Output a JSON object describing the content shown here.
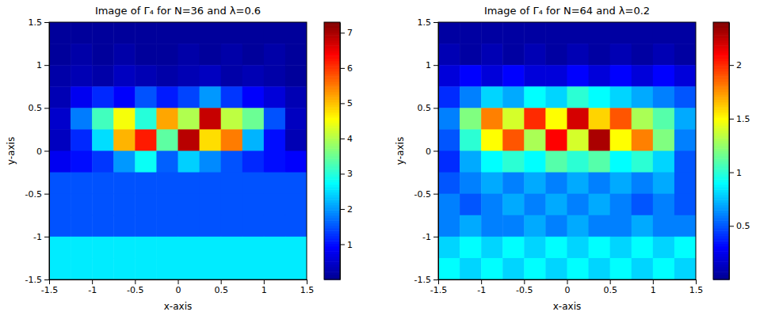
{
  "chart_data": [
    {
      "type": "heatmap",
      "title": "Image of Γ₄ for N=36 and λ=0.6",
      "x_label": "x-axis",
      "y_label": "y-axis",
      "xlim": [
        -1.5,
        1.5
      ],
      "ylim": [
        -1.5,
        1.5
      ],
      "xticks": [
        -1.5,
        -1,
        -0.5,
        0,
        0.5,
        1,
        1.5
      ],
      "yticks": [
        -1.5,
        -1,
        -0.5,
        0,
        0.5,
        1,
        1.5
      ],
      "x": [
        -1.375,
        -1.125,
        -0.875,
        -0.625,
        -0.375,
        -0.125,
        0.125,
        0.375,
        0.625,
        0.875,
        1.125,
        1.375
      ],
      "y": [
        1.375,
        1.125,
        0.875,
        0.625,
        0.375,
        0.125,
        -0.125,
        -0.375,
        -0.625,
        -0.875,
        -1.125,
        -1.375
      ],
      "values": [
        [
          0.1,
          0.1,
          0.1,
          0.1,
          0.1,
          0.1,
          0.1,
          0.1,
          0.1,
          0.1,
          0.1,
          0.1
        ],
        [
          0.1,
          0.2,
          0.1,
          0.2,
          0.1,
          0.1,
          0.2,
          0.1,
          0.2,
          0.1,
          0.2,
          0.1
        ],
        [
          0.2,
          0.3,
          0.2,
          0.4,
          0.3,
          0.2,
          0.3,
          0.4,
          0.2,
          0.3,
          0.2,
          0.1
        ],
        [
          0.3,
          0.8,
          1.2,
          0.9,
          1.5,
          1.1,
          1.4,
          2.0,
          1.3,
          0.9,
          0.6,
          0.3
        ],
        [
          0.5,
          1.8,
          3.2,
          4.5,
          3.0,
          5.2,
          4.0,
          6.8,
          4.1,
          3.5,
          1.5,
          0.4
        ],
        [
          0.4,
          1.2,
          2.5,
          5.1,
          6.2,
          3.4,
          6.9,
          4.8,
          5.5,
          2.2,
          1.0,
          0.3
        ],
        [
          0.8,
          1.0,
          1.3,
          2.0,
          2.8,
          1.6,
          2.4,
          1.9,
          1.5,
          1.2,
          1.0,
          0.9
        ],
        [
          1.5,
          1.5,
          1.5,
          1.5,
          1.5,
          1.5,
          1.5,
          1.5,
          1.5,
          1.5,
          1.5,
          1.5
        ],
        [
          1.5,
          1.5,
          1.5,
          1.5,
          1.5,
          1.5,
          1.5,
          1.5,
          1.5,
          1.5,
          1.5,
          1.5
        ],
        [
          1.5,
          1.5,
          1.5,
          1.5,
          1.5,
          1.5,
          1.5,
          1.5,
          1.5,
          1.5,
          1.5,
          1.5
        ],
        [
          2.6,
          2.6,
          2.6,
          2.6,
          2.6,
          2.6,
          2.6,
          2.6,
          2.6,
          2.6,
          2.6,
          2.6
        ],
        [
          2.6,
          2.6,
          2.6,
          2.6,
          2.6,
          2.6,
          2.6,
          2.6,
          2.6,
          2.6,
          2.6,
          2.6
        ]
      ],
      "colorbar": {
        "range": [
          0,
          7.3
        ],
        "ticks": [
          1,
          2,
          3,
          4,
          5,
          6,
          7
        ]
      }
    },
    {
      "type": "heatmap",
      "title": "Image of Γ₄ for N=64 and λ=0.2",
      "x_label": "x-axis",
      "y_label": "y-axis",
      "xlim": [
        -1.5,
        1.5
      ],
      "ylim": [
        -1.5,
        1.5
      ],
      "xticks": [
        -1.5,
        -1,
        -0.5,
        0,
        0.5,
        1,
        1.5
      ],
      "yticks": [
        -1.5,
        -1,
        -0.5,
        0,
        0.5,
        1,
        1.5
      ],
      "x": [
        -1.375,
        -1.125,
        -0.875,
        -0.625,
        -0.375,
        -0.125,
        0.125,
        0.375,
        0.625,
        0.875,
        1.125,
        1.375
      ],
      "y": [
        1.375,
        1.125,
        0.875,
        0.625,
        0.375,
        0.125,
        -0.125,
        -0.375,
        -0.625,
        -0.875,
        -1.125,
        -1.375
      ],
      "values": [
        [
          0.05,
          0.05,
          0.05,
          0.05,
          0.05,
          0.05,
          0.05,
          0.05,
          0.05,
          0.05,
          0.05,
          0.05
        ],
        [
          0.1,
          0.05,
          0.1,
          0.05,
          0.1,
          0.05,
          0.1,
          0.05,
          0.1,
          0.05,
          0.1,
          0.05
        ],
        [
          0.2,
          0.3,
          0.2,
          0.3,
          0.2,
          0.2,
          0.3,
          0.2,
          0.3,
          0.2,
          0.3,
          0.2
        ],
        [
          0.4,
          0.6,
          0.8,
          0.7,
          0.9,
          0.8,
          1.0,
          0.9,
          0.8,
          0.7,
          0.6,
          0.5
        ],
        [
          0.6,
          1.2,
          1.8,
          1.4,
          2.0,
          1.5,
          2.2,
          1.6,
          1.9,
          1.3,
          1.1,
          0.7
        ],
        [
          0.5,
          1.0,
          1.5,
          1.9,
          1.3,
          2.1,
          1.4,
          2.3,
          1.5,
          1.8,
          1.2,
          0.6
        ],
        [
          0.4,
          0.7,
          0.9,
          1.0,
          0.9,
          1.1,
          1.0,
          1.1,
          0.9,
          1.0,
          0.8,
          0.5
        ],
        [
          0.5,
          0.6,
          0.7,
          0.6,
          0.7,
          0.6,
          0.7,
          0.6,
          0.7,
          0.6,
          0.7,
          0.5
        ],
        [
          0.6,
          0.5,
          0.6,
          0.7,
          0.6,
          0.7,
          0.6,
          0.7,
          0.6,
          0.5,
          0.6,
          0.5
        ],
        [
          0.6,
          0.7,
          0.6,
          0.6,
          0.7,
          0.6,
          0.7,
          0.6,
          0.6,
          0.7,
          0.6,
          0.6
        ],
        [
          0.8,
          0.9,
          0.8,
          0.9,
          0.8,
          0.9,
          0.8,
          0.9,
          0.8,
          0.9,
          0.8,
          0.9
        ],
        [
          0.9,
          0.8,
          0.9,
          0.8,
          0.9,
          0.8,
          0.9,
          0.8,
          0.9,
          0.8,
          0.9,
          0.8
        ]
      ],
      "colorbar": {
        "range": [
          0,
          2.4
        ],
        "ticks": [
          0.5,
          1,
          1.5,
          2
        ]
      }
    }
  ]
}
